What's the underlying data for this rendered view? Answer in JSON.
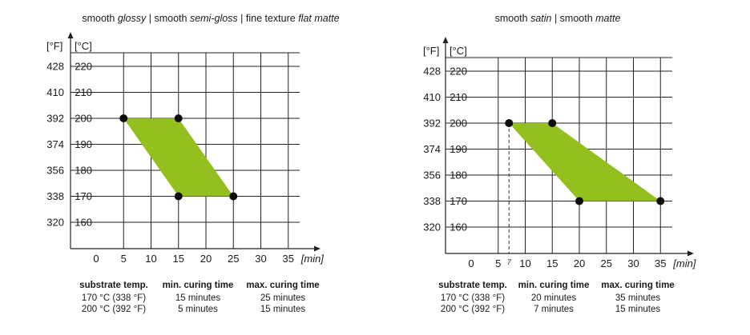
{
  "chart_data": [
    {
      "type": "area",
      "title_parts": [
        {
          "text": "smooth ",
          "italic": false
        },
        {
          "text": "glossy",
          "italic": true
        },
        {
          "text": " | smooth ",
          "italic": false
        },
        {
          "text": "semi-gloss",
          "italic": true
        },
        {
          "text": " | fine texture ",
          "italic": false
        },
        {
          "text": "flat matte",
          "italic": true
        }
      ],
      "ylabel_f": "[°F]",
      "ylabel_c": "[°C]",
      "xlabel": "[min]",
      "x_ticks": [
        0,
        5,
        10,
        15,
        20,
        25,
        30,
        35
      ],
      "y_ticks_c": [
        160,
        170,
        180,
        190,
        200,
        210,
        220
      ],
      "y_ticks_f": [
        320,
        338,
        356,
        374,
        392,
        410,
        428
      ],
      "xlim": [
        0,
        37
      ],
      "ylim": [
        154,
        225
      ],
      "region": [
        {
          "x": 5,
          "y": 200
        },
        {
          "x": 15,
          "y": 200
        },
        {
          "x": 25,
          "y": 170
        },
        {
          "x": 15,
          "y": 170
        }
      ],
      "points": [
        {
          "x": 5,
          "y": 200
        },
        {
          "x": 15,
          "y": 200
        },
        {
          "x": 15,
          "y": 170
        },
        {
          "x": 25,
          "y": 170
        }
      ],
      "extra_ticks": [],
      "table": {
        "headers": [
          "substrate temp.",
          "min. curing time",
          "max. curing time"
        ],
        "rows": [
          [
            "170 °C (338 °F)",
            "15 minutes",
            "25 minutes"
          ],
          [
            "200 °C (392 °F)",
            "5 minutes",
            "15 minutes"
          ]
        ]
      }
    },
    {
      "type": "area",
      "title_parts": [
        {
          "text": "smooth ",
          "italic": false
        },
        {
          "text": "satin",
          "italic": true
        },
        {
          "text": " | smooth ",
          "italic": false
        },
        {
          "text": "matte",
          "italic": true
        }
      ],
      "ylabel_f": "[°F]",
      "ylabel_c": "[°C]",
      "xlabel": "[min]",
      "x_ticks": [
        0,
        5,
        10,
        15,
        20,
        25,
        30,
        35
      ],
      "y_ticks_c": [
        160,
        170,
        180,
        190,
        200,
        210,
        220
      ],
      "y_ticks_f": [
        320,
        338,
        356,
        374,
        392,
        410,
        428
      ],
      "xlim": [
        0,
        37
      ],
      "ylim": [
        154,
        225
      ],
      "region": [
        {
          "x": 7,
          "y": 200
        },
        {
          "x": 15,
          "y": 200
        },
        {
          "x": 35,
          "y": 170
        },
        {
          "x": 20,
          "y": 170
        }
      ],
      "points": [
        {
          "x": 7,
          "y": 200
        },
        {
          "x": 15,
          "y": 200
        },
        {
          "x": 20,
          "y": 170
        },
        {
          "x": 35,
          "y": 170
        }
      ],
      "extra_ticks": [
        {
          "x": 7,
          "label": "7"
        }
      ],
      "table": {
        "headers": [
          "substrate temp.",
          "min. curing time",
          "max. curing time"
        ],
        "rows": [
          [
            "170 °C (338 °F)",
            "20 minutes",
            "35 minutes"
          ],
          [
            "200 °C (392 °F)",
            "7 minutes",
            "15 minutes"
          ]
        ]
      }
    }
  ]
}
